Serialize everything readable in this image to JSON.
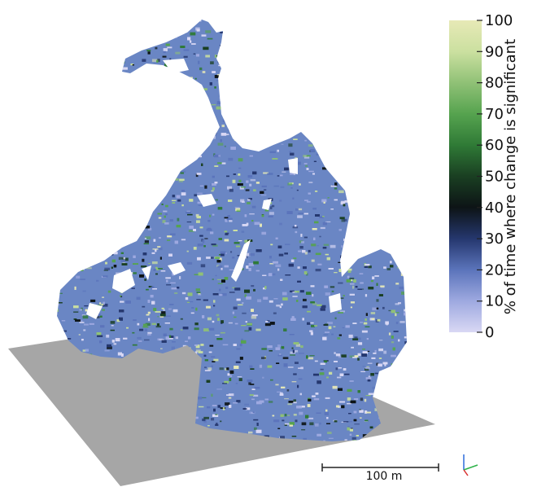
{
  "colorbar": {
    "title": "% of time where change is significant",
    "ticks": [
      "0",
      "10",
      "20",
      "30",
      "40",
      "50",
      "60",
      "70",
      "80",
      "90",
      "100"
    ],
    "colors": [
      "#d9d8f4",
      "#9ea9e0",
      "#5b74bb",
      "#25376e",
      "#0d1416",
      "#1a3f22",
      "#2f7a36",
      "#56a34f",
      "#90c176",
      "#cbe0a0",
      "#e7e9b6"
    ]
  },
  "scalebar": {
    "label": "100 m"
  },
  "axes_gizmo": {
    "colors": [
      "#2e6cdb",
      "#2fb34a",
      "#d93030"
    ]
  },
  "ground_plane": {
    "color": "#a6a6a6"
  }
}
